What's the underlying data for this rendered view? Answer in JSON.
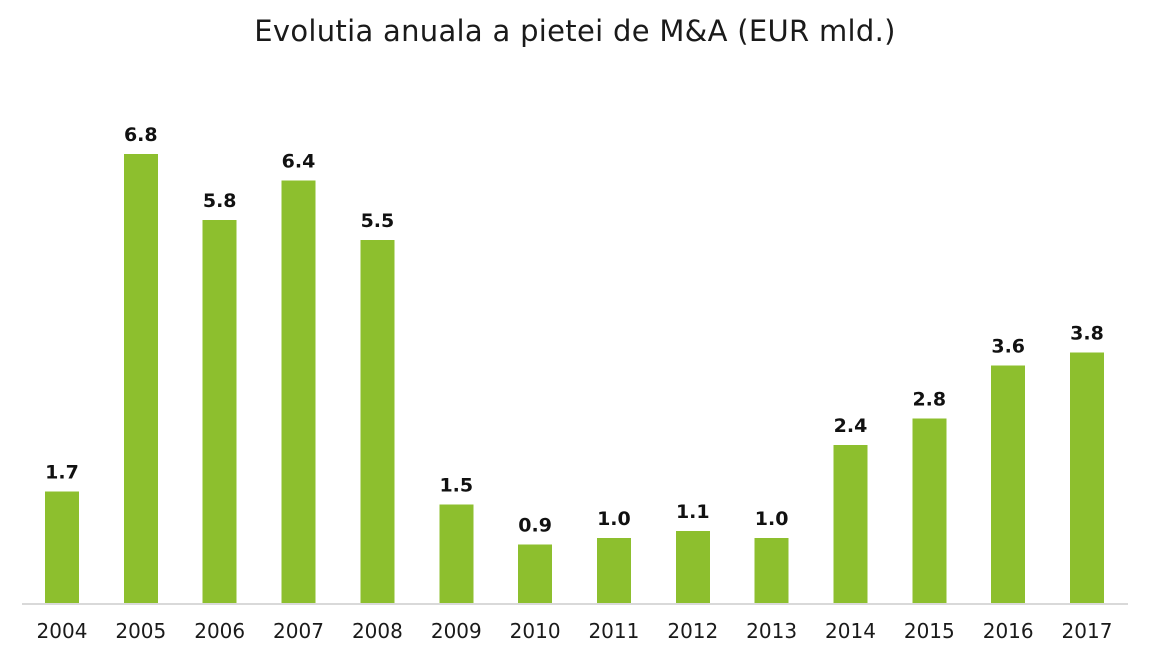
{
  "chart_data": {
    "type": "bar",
    "title": "Evolutia anuala a pietei de M&A (EUR mld.)",
    "xlabel": "",
    "ylabel": "",
    "categories": [
      "2004",
      "2005",
      "2006",
      "2007",
      "2008",
      "2009",
      "2010",
      "2011",
      "2012",
      "2013",
      "2014",
      "2015",
      "2016",
      "2017"
    ],
    "values": [
      1.7,
      6.8,
      5.8,
      6.4,
      5.5,
      1.5,
      0.9,
      1.0,
      1.1,
      1.0,
      2.4,
      2.8,
      3.6,
      3.8
    ],
    "value_labels": [
      "1.7",
      "6.8",
      "5.8",
      "6.4",
      "5.5",
      "1.5",
      "0.9",
      "1.0",
      "1.1",
      "1.0",
      "2.4",
      "2.8",
      "3.6",
      "3.8"
    ],
    "ylim": [
      0,
      7.4
    ],
    "grid": false,
    "legend": "none",
    "colors": {
      "bar": "#8dbf2e",
      "axis": "#d9d9d9",
      "text": "#1a1a1a"
    }
  }
}
